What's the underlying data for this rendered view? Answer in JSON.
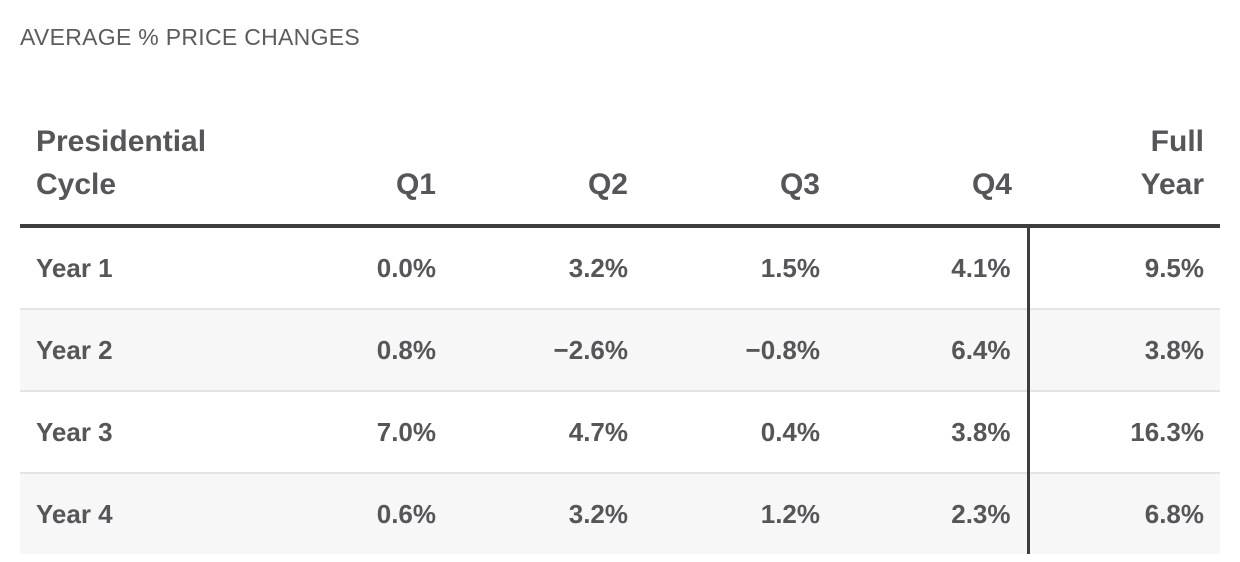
{
  "caption": "AVERAGE % PRICE CHANGES",
  "chart_data": {
    "type": "table",
    "title": "AVERAGE % PRICE CHANGES",
    "columns": [
      {
        "line1": "Presidential",
        "line2": "Cycle"
      },
      {
        "line1": "",
        "line2": "Q1"
      },
      {
        "line1": "",
        "line2": "Q2"
      },
      {
        "line1": "",
        "line2": "Q3"
      },
      {
        "line1": "",
        "line2": "Q4"
      },
      {
        "line1": "Full",
        "line2": "Year"
      }
    ],
    "rows": [
      [
        "Year 1",
        "0.0%",
        "3.2%",
        "1.5%",
        "4.1%",
        "9.5%"
      ],
      [
        "Year 2",
        "0.8%",
        "−2.6%",
        "−0.8%",
        "6.4%",
        "3.8%"
      ],
      [
        "Year 3",
        "7.0%",
        "4.7%",
        "0.4%",
        "3.8%",
        "16.3%"
      ],
      [
        "Year 4",
        "0.6%",
        "3.2%",
        "1.2%",
        "2.3%",
        "6.8%"
      ]
    ]
  }
}
